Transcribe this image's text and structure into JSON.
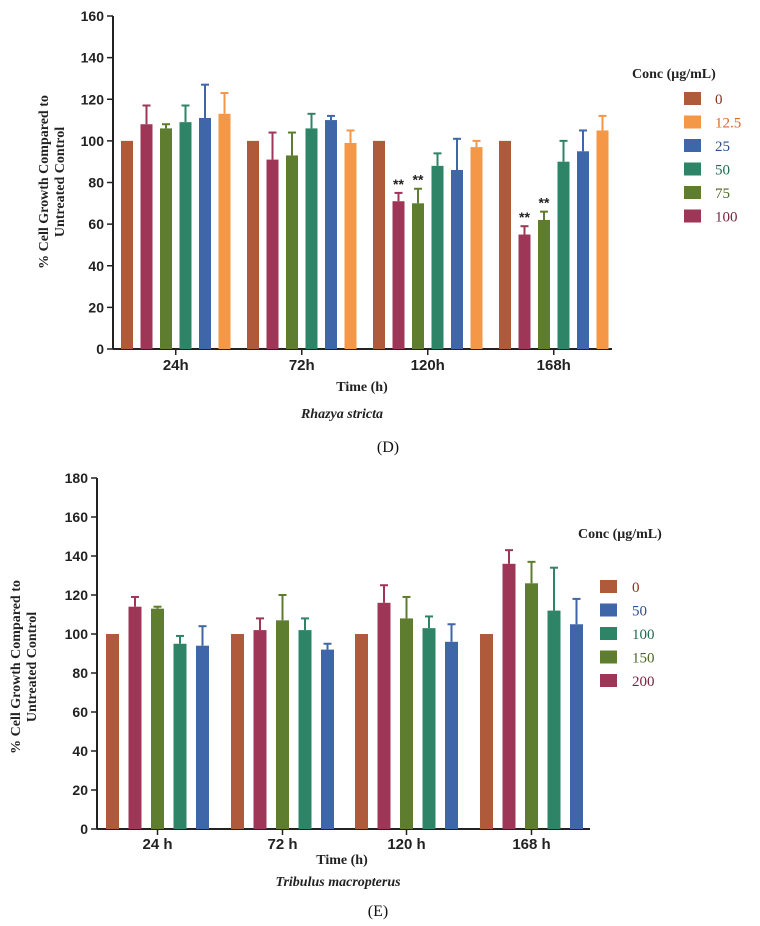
{
  "chart_data": [
    {
      "type": "bar",
      "title": "",
      "panel_label": "(D)",
      "species": "Rhazya stricta",
      "xlabel": "Time (h)",
      "ylabel_lines": [
        "% Cell Growth Compared to",
        "Untreated Control"
      ],
      "ylim": [
        0,
        160
      ],
      "yticks": [
        0,
        20,
        40,
        60,
        80,
        100,
        120,
        140,
        160
      ],
      "categories": [
        "24h",
        "72h",
        "120h",
        "168h"
      ],
      "legend_title": "Conc (μg/mL)",
      "series": [
        {
          "name": "0",
          "color": "#b05a3c",
          "legend_text_color": "#8b2f1f",
          "values": [
            100,
            100,
            100,
            100
          ],
          "errors": [
            0,
            0,
            0,
            0
          ],
          "sig": [
            "",
            "",
            "",
            ""
          ]
        },
        {
          "name": "100",
          "color": "#9e3658",
          "legend_text_color": "#7a2340",
          "values": [
            108,
            91,
            71,
            55
          ],
          "errors": [
            9,
            13,
            4,
            4
          ],
          "sig": [
            "",
            "",
            "**",
            "**"
          ]
        },
        {
          "name": "75",
          "color": "#5e7d2e",
          "legend_text_color": "#4b6623",
          "values": [
            106,
            93,
            70,
            62
          ],
          "errors": [
            2,
            11,
            7,
            4
          ],
          "sig": [
            "",
            "",
            "**",
            "**"
          ]
        },
        {
          "name": "50",
          "color": "#2d8466",
          "legend_text_color": "#1f6b50",
          "values": [
            109,
            106,
            88,
            90
          ],
          "errors": [
            8,
            7,
            6,
            10
          ],
          "sig": [
            "",
            "",
            "",
            ""
          ]
        },
        {
          "name": "25",
          "color": "#3e66a8",
          "legend_text_color": "#2b4f8c",
          "values": [
            111,
            110,
            86,
            95
          ],
          "errors": [
            16,
            2,
            15,
            10
          ],
          "sig": [
            "",
            "",
            "",
            ""
          ]
        },
        {
          "name": "12.5",
          "color": "#f49746",
          "legend_text_color": "#d9682b",
          "values": [
            113,
            99,
            97,
            105
          ],
          "errors": [
            10,
            6,
            3,
            7
          ],
          "sig": [
            "",
            "",
            "",
            ""
          ]
        }
      ],
      "legend_order": [
        "0",
        "12.5",
        "25",
        "50",
        "75",
        "100"
      ]
    },
    {
      "type": "bar",
      "title": "",
      "panel_label": "(E)",
      "species": "Tribulus macropterus",
      "xlabel": "Time (h)",
      "ylabel_lines": [
        "% Cell Growth Compared to",
        "Untreated Control"
      ],
      "ylim": [
        0,
        180
      ],
      "yticks": [
        0,
        20,
        40,
        60,
        80,
        100,
        120,
        140,
        160,
        180
      ],
      "categories": [
        "24 h",
        "72 h",
        "120 h",
        "168 h"
      ],
      "legend_title": "Conc (μg/mL)",
      "series": [
        {
          "name": "0",
          "color": "#b05a3c",
          "legend_text_color": "#8b2f1f",
          "values": [
            100,
            100,
            100,
            100
          ],
          "errors": [
            0,
            0,
            0,
            0
          ],
          "sig": [
            "",
            "",
            "",
            ""
          ]
        },
        {
          "name": "200",
          "color": "#9e3658",
          "legend_text_color": "#7a2340",
          "values": [
            114,
            102,
            116,
            136
          ],
          "errors": [
            5,
            6,
            9,
            7
          ],
          "sig": [
            "",
            "",
            "",
            ""
          ]
        },
        {
          "name": "150",
          "color": "#5e7d2e",
          "legend_text_color": "#4b6623",
          "values": [
            113,
            107,
            108,
            126
          ],
          "errors": [
            1,
            13,
            11,
            11
          ],
          "sig": [
            "",
            "",
            "",
            ""
          ]
        },
        {
          "name": "100",
          "color": "#2d8466",
          "legend_text_color": "#1f6b50",
          "values": [
            95,
            102,
            103,
            112
          ],
          "errors": [
            4,
            6,
            6,
            22
          ],
          "sig": [
            "",
            "",
            "",
            ""
          ]
        },
        {
          "name": "50",
          "color": "#3e66a8",
          "legend_text_color": "#2b4f8c",
          "values": [
            94,
            92,
            96,
            105
          ],
          "errors": [
            10,
            3,
            9,
            13
          ],
          "sig": [
            "",
            "",
            "",
            ""
          ]
        }
      ],
      "legend_order": [
        "0",
        "50",
        "100",
        "150",
        "200"
      ]
    }
  ]
}
